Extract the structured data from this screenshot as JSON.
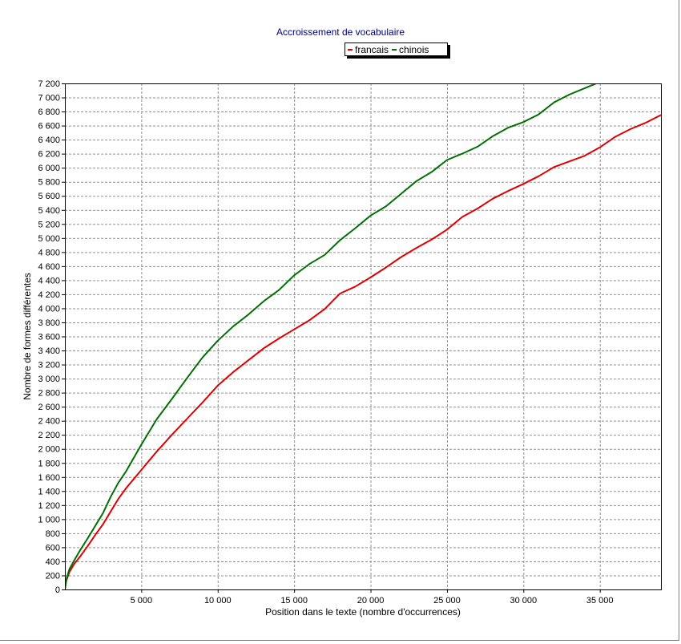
{
  "chart_data": {
    "type": "line",
    "title": "Accroissement de vocabulaire",
    "xlabel": "Position dans le texte (nombre d'occurrences)",
    "ylabel": "Nombre de formes différentes",
    "xlim": [
      0,
      39000
    ],
    "ylim": [
      0,
      7200
    ],
    "grid": true,
    "legend_position": "top-center",
    "x_ticks": [
      5000,
      10000,
      15000,
      20000,
      25000,
      30000,
      35000
    ],
    "x_tick_labels": [
      "5 000",
      "10 000",
      "15 000",
      "20 000",
      "25 000",
      "30 000",
      "35 000"
    ],
    "y_ticks": [
      0,
      200,
      400,
      600,
      800,
      1000,
      1200,
      1400,
      1600,
      1800,
      2000,
      2200,
      2400,
      2600,
      2800,
      3000,
      3200,
      3400,
      3600,
      3800,
      4000,
      4200,
      4400,
      4600,
      4800,
      5000,
      5200,
      5400,
      5600,
      5800,
      6000,
      6200,
      6400,
      6600,
      6800,
      7000,
      7200
    ],
    "y_tick_labels": [
      "0",
      "200",
      "400",
      "600",
      "800",
      "1 000",
      "1 200",
      "1 400",
      "1 600",
      "1 800",
      "2 000",
      "2 200",
      "2 400",
      "2 600",
      "2 800",
      "3 000",
      "3 200",
      "3 400",
      "3 600",
      "3 800",
      "4 000",
      "4 200",
      "4 400",
      "4 600",
      "4 800",
      "5 000",
      "5 200",
      "5 400",
      "5 600",
      "5 800",
      "6 000",
      "6 200",
      "6 400",
      "6 600",
      "6 800",
      "7 000",
      "7 200"
    ],
    "series": [
      {
        "name": "francais",
        "color": "#e00000",
        "points": [
          [
            0,
            0
          ],
          [
            100,
            130
          ],
          [
            300,
            250
          ],
          [
            600,
            360
          ],
          [
            1000,
            470
          ],
          [
            1500,
            620
          ],
          [
            2000,
            780
          ],
          [
            2500,
            930
          ],
          [
            3000,
            1110
          ],
          [
            3500,
            1290
          ],
          [
            4000,
            1440
          ],
          [
            5000,
            1700
          ],
          [
            6000,
            1960
          ],
          [
            7000,
            2200
          ],
          [
            8000,
            2430
          ],
          [
            9000,
            2660
          ],
          [
            10000,
            2900
          ],
          [
            11000,
            3090
          ],
          [
            12000,
            3260
          ],
          [
            13000,
            3430
          ],
          [
            14000,
            3570
          ],
          [
            15000,
            3700
          ],
          [
            16000,
            3830
          ],
          [
            17000,
            3990
          ],
          [
            18000,
            4210
          ],
          [
            19000,
            4310
          ],
          [
            20000,
            4440
          ],
          [
            21000,
            4580
          ],
          [
            22000,
            4730
          ],
          [
            23000,
            4860
          ],
          [
            24000,
            4980
          ],
          [
            25000,
            5120
          ],
          [
            26000,
            5300
          ],
          [
            27000,
            5420
          ],
          [
            28000,
            5560
          ],
          [
            29000,
            5670
          ],
          [
            30000,
            5770
          ],
          [
            31000,
            5880
          ],
          [
            32000,
            6010
          ],
          [
            33000,
            6090
          ],
          [
            34000,
            6170
          ],
          [
            35000,
            6290
          ],
          [
            36000,
            6440
          ],
          [
            37000,
            6550
          ],
          [
            38000,
            6640
          ],
          [
            39000,
            6750
          ]
        ]
      },
      {
        "name": "chinois",
        "color": "#007000",
        "points": [
          [
            0,
            0
          ],
          [
            100,
            150
          ],
          [
            300,
            290
          ],
          [
            600,
            410
          ],
          [
            1000,
            560
          ],
          [
            1500,
            730
          ],
          [
            2000,
            910
          ],
          [
            2500,
            1090
          ],
          [
            3000,
            1320
          ],
          [
            3500,
            1520
          ],
          [
            4000,
            1680
          ],
          [
            5000,
            2060
          ],
          [
            6000,
            2420
          ],
          [
            7000,
            2710
          ],
          [
            8000,
            3010
          ],
          [
            9000,
            3300
          ],
          [
            10000,
            3540
          ],
          [
            11000,
            3740
          ],
          [
            12000,
            3910
          ],
          [
            13000,
            4100
          ],
          [
            14000,
            4260
          ],
          [
            15000,
            4470
          ],
          [
            16000,
            4630
          ],
          [
            17000,
            4760
          ],
          [
            18000,
            4970
          ],
          [
            19000,
            5140
          ],
          [
            20000,
            5320
          ],
          [
            21000,
            5450
          ],
          [
            22000,
            5630
          ],
          [
            23000,
            5810
          ],
          [
            24000,
            5940
          ],
          [
            25000,
            6110
          ],
          [
            26000,
            6200
          ],
          [
            27000,
            6300
          ],
          [
            28000,
            6450
          ],
          [
            29000,
            6570
          ],
          [
            30000,
            6650
          ],
          [
            31000,
            6760
          ],
          [
            32000,
            6930
          ],
          [
            33000,
            7040
          ],
          [
            34000,
            7130
          ],
          [
            35000,
            7220
          ]
        ]
      }
    ]
  }
}
